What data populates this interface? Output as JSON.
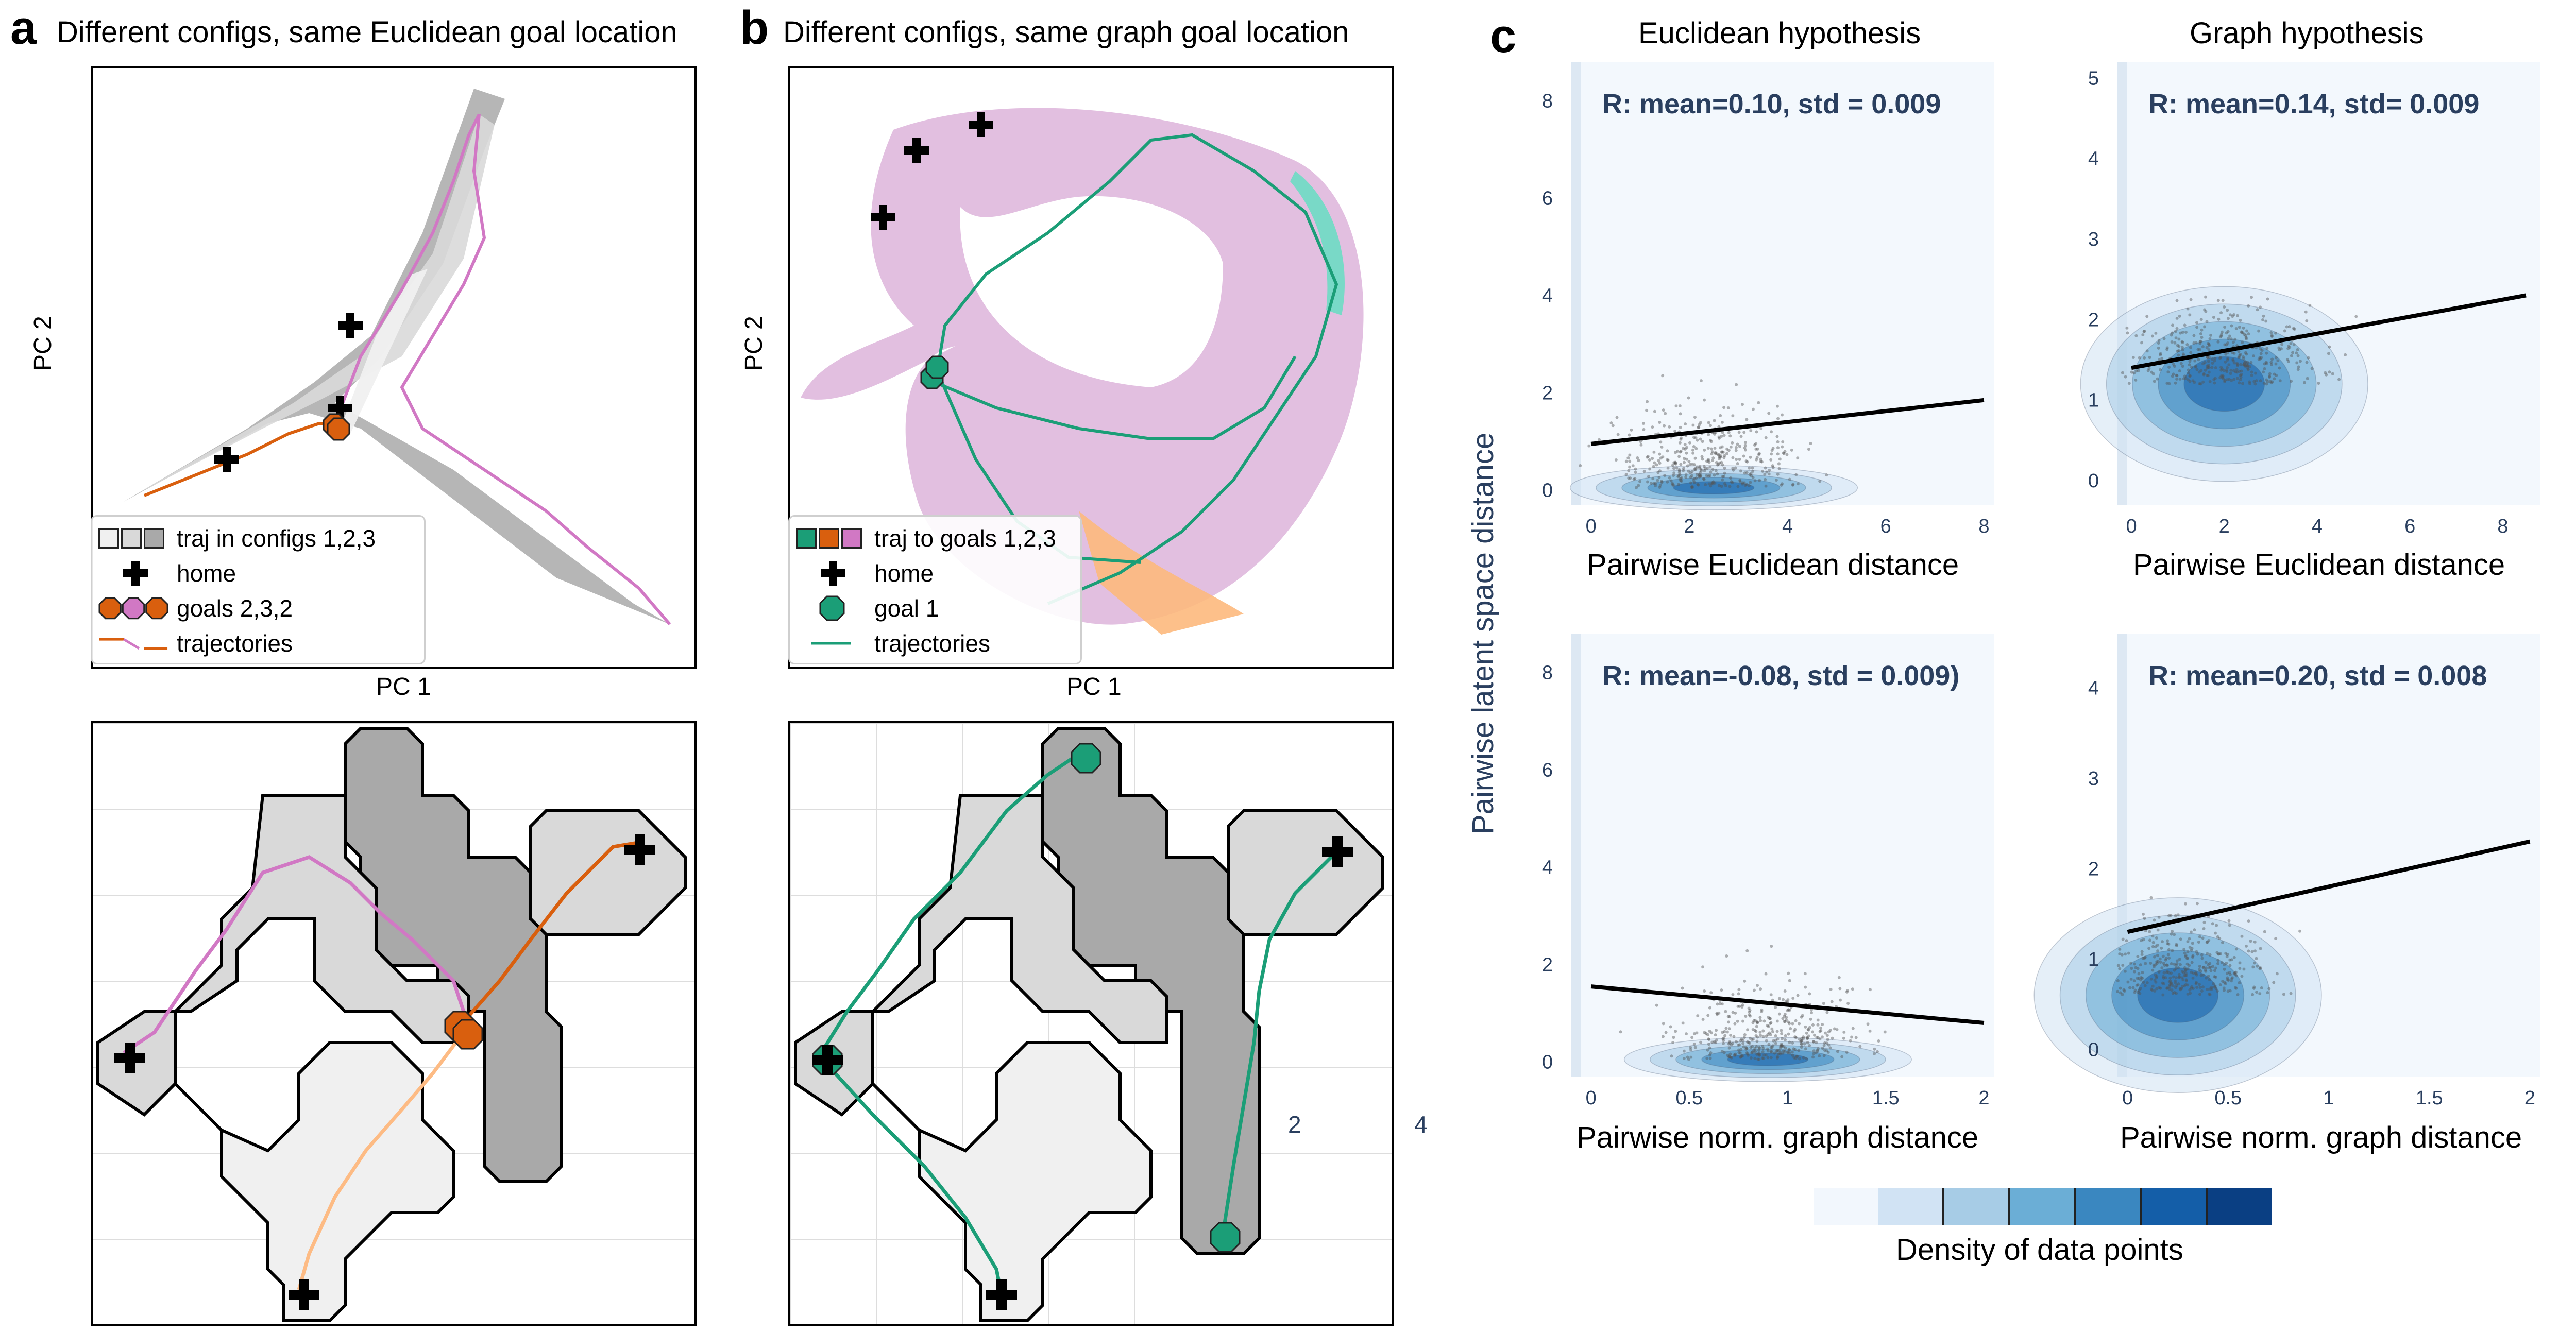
{
  "panels": {
    "a": {
      "letter": "a",
      "title": "Different configs, same Euclidean goal location"
    },
    "b": {
      "letter": "b",
      "title": "Different configs, same graph goal location"
    },
    "c": {
      "letter": "c"
    }
  },
  "pca_axes": {
    "xlabel": "PC 1",
    "ylabel": "PC 2"
  },
  "legend_a": {
    "traj": "traj in configs 1,2,3",
    "home": "home",
    "goals": "goals 2,3,2",
    "trajectories": "trajectories"
  },
  "legend_b": {
    "traj": "traj to goals 1,2,3",
    "home": "home",
    "goal": "goal 1",
    "trajectories": "trajectories"
  },
  "colors": {
    "config1": "#f0f0f0",
    "config2": "#d9d9d9",
    "config3": "#a9a9a9",
    "orange": "#d95f0e",
    "light_orange": "#fdbb84",
    "pink": "#d178c4",
    "teal": "#1b9e77",
    "mint": "#5fe0c0",
    "peach": "#fdb97d",
    "lilac": "#e2bfe0",
    "navy": "#2a3f5f"
  },
  "stray_labels": {
    "two": "2",
    "four": "4"
  },
  "colorbar": {
    "label": "Density of data points",
    "colors": [
      "#f2f7fd",
      "#d1e3f4",
      "#a7cce6",
      "#6baed6",
      "#3a87c0",
      "#145ea8",
      "#0a3f83"
    ]
  },
  "shared_ylabel": "Pairwise latent space distance",
  "chart_data": [
    {
      "type": "scatter",
      "title": "Euclidean hypothesis",
      "annotation": "R: mean=0.10, std = 0.009",
      "xlabel": "Pairwise Euclidean distance",
      "ylabel": "Pairwise latent space distance",
      "xlim": [
        -0.4,
        8.2
      ],
      "ylim": [
        -0.3,
        8.8
      ],
      "xticks": [
        0,
        2,
        4,
        6,
        8
      ],
      "yticks": [
        0,
        2,
        4,
        6,
        8
      ],
      "regression": {
        "x": [
          0,
          8
        ],
        "y": [
          0.95,
          1.85
        ]
      },
      "density_center": [
        2.5,
        0.05
      ]
    },
    {
      "type": "scatter",
      "title": "Graph hypothesis",
      "annotation": "R: mean=0.14, std= 0.009",
      "xlabel": "Pairwise Euclidean distance",
      "ylabel": "",
      "xlim": [
        -0.3,
        8.8
      ],
      "ylim": [
        -0.3,
        5.2
      ],
      "xticks": [
        0,
        2,
        4,
        6,
        8
      ],
      "yticks": [
        0,
        1,
        2,
        3,
        4,
        5
      ],
      "regression": {
        "x": [
          0,
          8.5
        ],
        "y": [
          1.4,
          2.3
        ]
      },
      "density_center": [
        2.0,
        1.2
      ]
    },
    {
      "type": "scatter",
      "title": "",
      "annotation": "R: mean=-0.08, std = 0.009)",
      "xlabel": "Pairwise norm. graph distance",
      "ylabel": "Pairwise latent space distance",
      "xlim": [
        -0.1,
        2.05
      ],
      "ylim": [
        -0.3,
        8.8
      ],
      "xticks": [
        0,
        0.5,
        1,
        1.5,
        2
      ],
      "yticks": [
        0,
        2,
        4,
        6,
        8
      ],
      "regression": {
        "x": [
          0,
          2
        ],
        "y": [
          1.55,
          0.8
        ]
      },
      "density_center": [
        0.9,
        0.05
      ]
    },
    {
      "type": "scatter",
      "title": "",
      "annotation": "R: mean=0.20, std = 0.008",
      "xlabel": "Pairwise norm. graph distance",
      "ylabel": "",
      "xlim": [
        -0.05,
        2.05
      ],
      "ylim": [
        -0.3,
        4.6
      ],
      "xticks": [
        0,
        0.5,
        1,
        1.5,
        2
      ],
      "yticks": [
        0,
        1,
        2,
        3,
        4
      ],
      "regression": {
        "x": [
          0,
          2
        ],
        "y": [
          1.3,
          2.3
        ]
      },
      "density_center": [
        0.25,
        0.6
      ]
    }
  ]
}
